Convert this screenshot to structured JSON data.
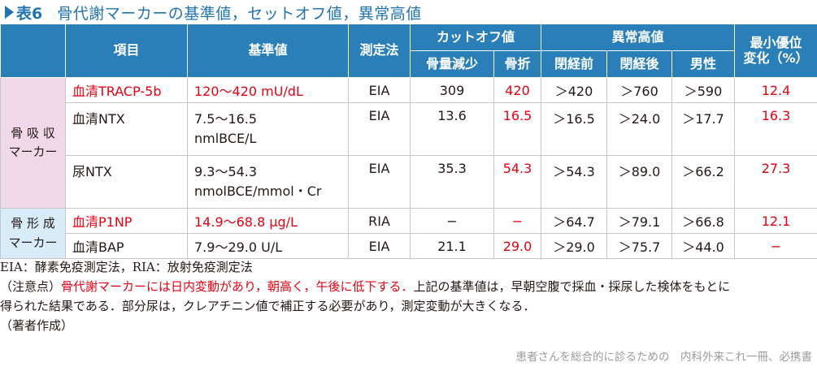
{
  "title": {
    "label": "表6",
    "text": "骨代謝マーカーの基準値，セットオフ値，異常高値"
  },
  "table": {
    "headers": {
      "item": "項目",
      "reference": "基準値",
      "method": "測定法",
      "cutoff": "カットオフ値",
      "cutoff_bone_loss": "骨量減少",
      "cutoff_fracture": "骨折",
      "abnormal": "異常高値",
      "abnormal_premeno": "閉経前",
      "abnormal_postmeno": "閉経後",
      "abnormal_male": "男性",
      "lsc_line1": "最小優位",
      "lsc_line2": "変化（%）"
    },
    "groups": [
      {
        "label_line1": "骨 吸 収",
        "label_line2": "マーカー",
        "rows": [
          {
            "item": "血清TRACP-5b",
            "item_red": true,
            "ref1": "120～420 mU/dL",
            "ref2": "",
            "ref_red": true,
            "method": "EIA",
            "bone_loss": "309",
            "fracture": "420",
            "premeno": "＞420",
            "postmeno": "＞760",
            "male": "＞590",
            "lsc": "12.4"
          },
          {
            "item": "血清NTX",
            "item_red": false,
            "ref1": "7.5～16.5",
            "ref2": "nmlBCE/L",
            "ref_red": false,
            "method": "EIA",
            "bone_loss": "13.6",
            "fracture": "16.5",
            "premeno": "＞16.5",
            "postmeno": "＞24.0",
            "male": "＞17.7",
            "lsc": "16.3"
          },
          {
            "item": "尿NTX",
            "item_red": false,
            "ref1": "9.3～54.3",
            "ref2": "nmolBCE/mmol・Cr",
            "ref_red": false,
            "method": "EIA",
            "bone_loss": "35.3",
            "fracture": "54.3",
            "premeno": "＞54.3",
            "postmeno": "＞89.0",
            "male": "＞66.2",
            "lsc": "27.3"
          }
        ]
      },
      {
        "label_line1": "骨 形 成",
        "label_line2": "マーカー",
        "rows": [
          {
            "item": "血清P1NP",
            "item_red": true,
            "ref1": "14.9～68.8 μg/L",
            "ref2": "",
            "ref_red": true,
            "method": "RIA",
            "bone_loss": "−",
            "fracture": "−",
            "premeno": "＞64.7",
            "postmeno": "＞79.1",
            "male": "＞66.8",
            "lsc": "12.1"
          },
          {
            "item": "血清BAP",
            "item_red": false,
            "ref1": "7.9～29.0 U/L",
            "ref2": "",
            "ref_red": false,
            "method": "EIA",
            "bone_loss": "21.1",
            "fracture": "29.0",
            "premeno": "＞29.0",
            "postmeno": "＞75.7",
            "male": "＞44.0",
            "lsc": "−"
          }
        ]
      }
    ]
  },
  "notes": {
    "abbrev": "EIA：酵素免疫測定法，RIA：放射免疫測定法",
    "caution_prefix": "（注意点）",
    "caution_red": "骨代謝マーカーには日内変動があり，朝高く，午後に低下する．",
    "caution_rest": "上記の基準値は，早朝空腹で採血・採尿した検体をもとに",
    "caution_line2": "得られた結果である．部分尿は，クレアチニン値で補正する必要があり，測定変動が大きくなる．",
    "author": "（著者作成）"
  },
  "footer": "患者さんを総合的に診るための　内科外来これ一冊、必携書",
  "colors": {
    "header_bg": "#2b7fb8",
    "title_blue": "#1f73b3",
    "red": "#e60012",
    "resorption_bg": "#f0d8e8",
    "formation_bg": "#d7ecf8"
  }
}
